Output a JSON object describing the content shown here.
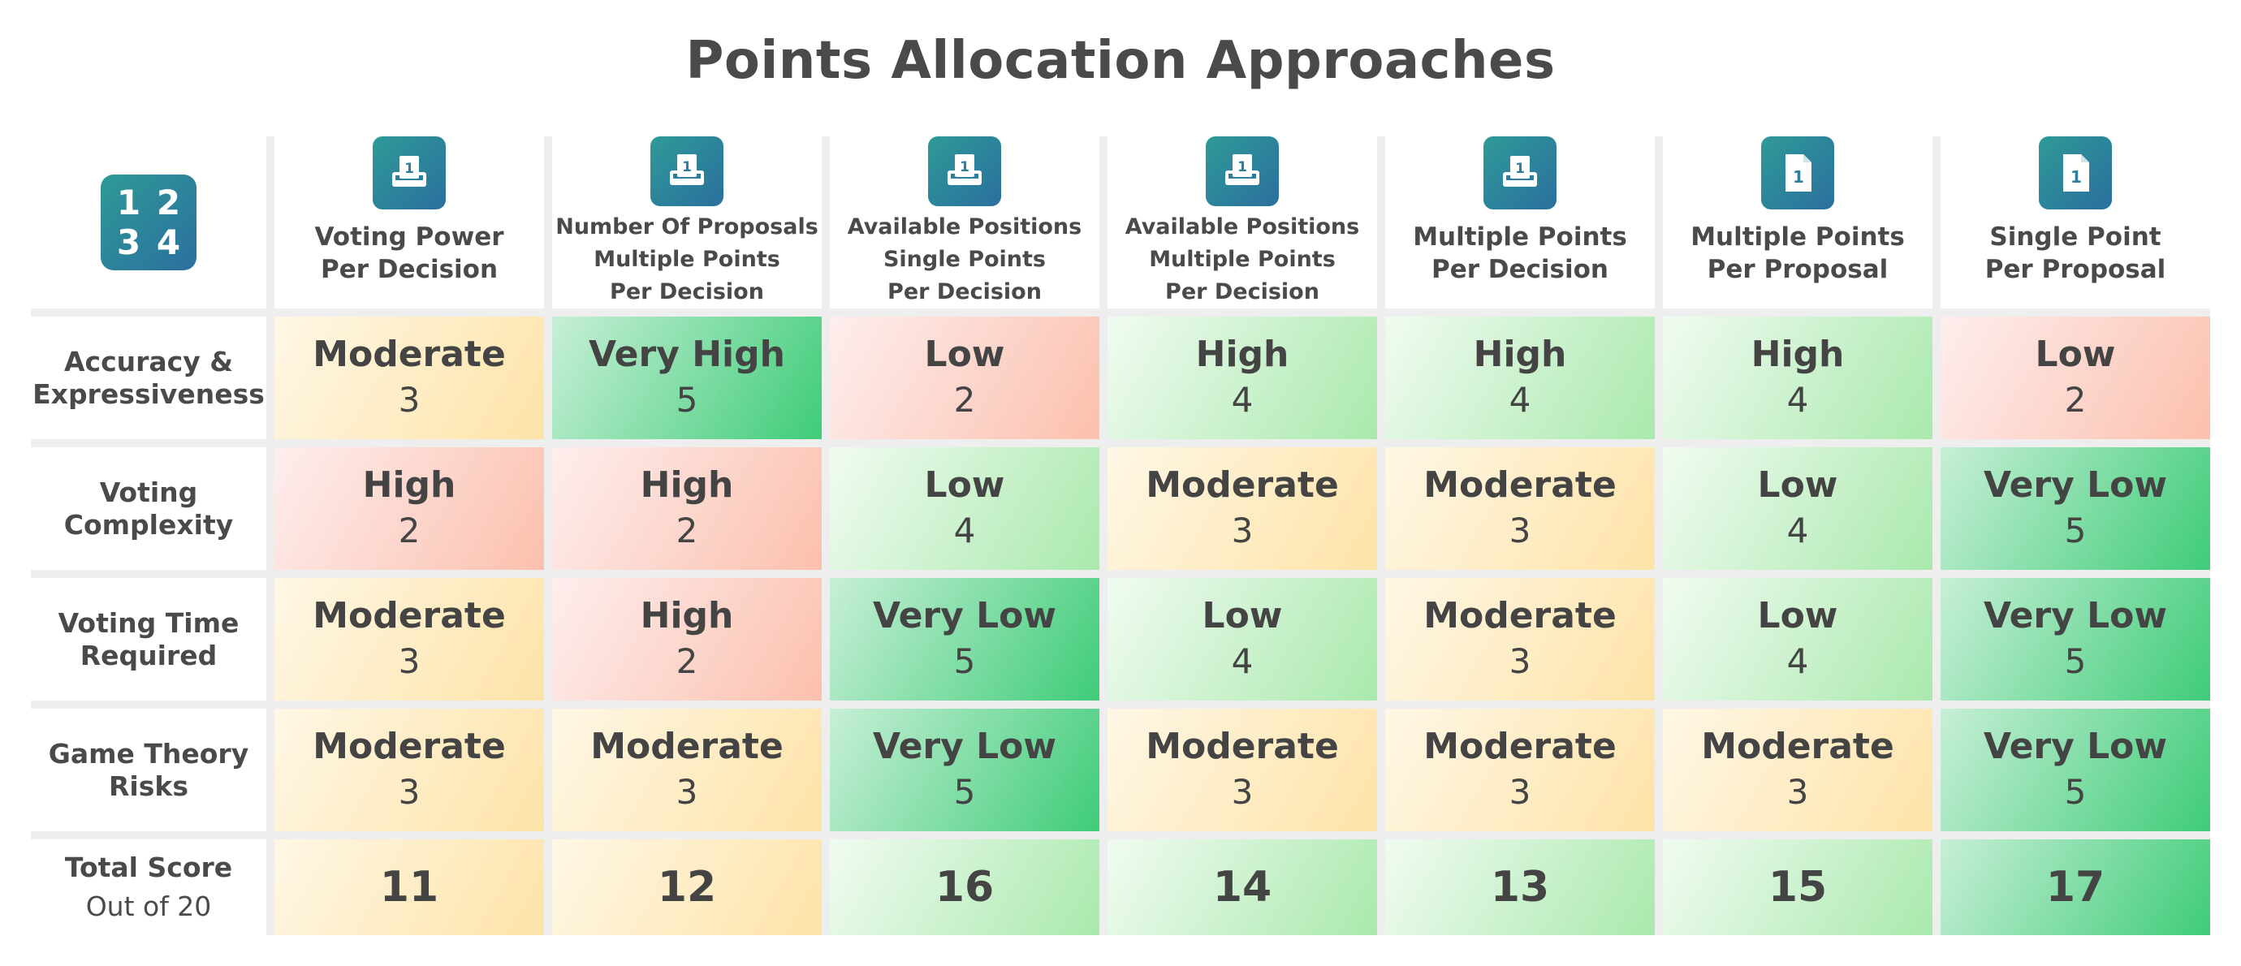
{
  "title": "Points Allocation Approaches",
  "corner_icon": {
    "name": "numbers-grid-icon",
    "digits": [
      "1",
      "2",
      "3",
      "4"
    ]
  },
  "columns": [
    {
      "label": "Voting Power\nPer Decision",
      "icon": "ballot-box-icon",
      "small": false
    },
    {
      "label": "Number Of Proposals\nMultiple Points\nPer Decision",
      "icon": "ballot-box-icon",
      "small": true
    },
    {
      "label": "Available Positions\nSingle Points\nPer Decision",
      "icon": "ballot-box-icon",
      "small": true
    },
    {
      "label": "Available Positions\nMultiple Points\nPer Decision",
      "icon": "ballot-box-icon",
      "small": true
    },
    {
      "label": "Multiple Points\nPer Decision",
      "icon": "ballot-box-icon",
      "small": false
    },
    {
      "label": "Multiple Points\nPer Proposal",
      "icon": "document-icon",
      "small": false
    },
    {
      "label": "Single Point\nPer Proposal",
      "icon": "document-icon",
      "small": false
    }
  ],
  "rows": [
    {
      "label": "Accuracy &\nExpressiveness",
      "cells": [
        {
          "rating": "Moderate",
          "score": "3",
          "tone": "moderate"
        },
        {
          "rating": "Very High",
          "score": "5",
          "tone": "best"
        },
        {
          "rating": "Low",
          "score": "2",
          "tone": "bad"
        },
        {
          "rating": "High",
          "score": "4",
          "tone": "good"
        },
        {
          "rating": "High",
          "score": "4",
          "tone": "good"
        },
        {
          "rating": "High",
          "score": "4",
          "tone": "good"
        },
        {
          "rating": "Low",
          "score": "2",
          "tone": "bad"
        }
      ]
    },
    {
      "label": "Voting\nComplexity",
      "cells": [
        {
          "rating": "High",
          "score": "2",
          "tone": "bad"
        },
        {
          "rating": "High",
          "score": "2",
          "tone": "bad"
        },
        {
          "rating": "Low",
          "score": "4",
          "tone": "good"
        },
        {
          "rating": "Moderate",
          "score": "3",
          "tone": "moderate"
        },
        {
          "rating": "Moderate",
          "score": "3",
          "tone": "moderate"
        },
        {
          "rating": "Low",
          "score": "4",
          "tone": "good"
        },
        {
          "rating": "Very Low",
          "score": "5",
          "tone": "best"
        }
      ]
    },
    {
      "label": "Voting Time\nRequired",
      "cells": [
        {
          "rating": "Moderate",
          "score": "3",
          "tone": "moderate"
        },
        {
          "rating": "High",
          "score": "2",
          "tone": "bad"
        },
        {
          "rating": "Very Low",
          "score": "5",
          "tone": "best"
        },
        {
          "rating": "Low",
          "score": "4",
          "tone": "good"
        },
        {
          "rating": "Moderate",
          "score": "3",
          "tone": "moderate"
        },
        {
          "rating": "Low",
          "score": "4",
          "tone": "good"
        },
        {
          "rating": "Very Low",
          "score": "5",
          "tone": "best"
        }
      ]
    },
    {
      "label": "Game Theory\nRisks",
      "cells": [
        {
          "rating": "Moderate",
          "score": "3",
          "tone": "moderate"
        },
        {
          "rating": "Moderate",
          "score": "3",
          "tone": "moderate"
        },
        {
          "rating": "Very Low",
          "score": "5",
          "tone": "best"
        },
        {
          "rating": "Moderate",
          "score": "3",
          "tone": "moderate"
        },
        {
          "rating": "Moderate",
          "score": "3",
          "tone": "moderate"
        },
        {
          "rating": "Moderate",
          "score": "3",
          "tone": "moderate"
        },
        {
          "rating": "Very Low",
          "score": "5",
          "tone": "best"
        }
      ]
    }
  ],
  "total_row": {
    "label": "Total Score",
    "sublabel": "Out of 20",
    "cells": [
      {
        "value": "11",
        "tone": "moderate"
      },
      {
        "value": "12",
        "tone": "moderate"
      },
      {
        "value": "16",
        "tone": "good"
      },
      {
        "value": "14",
        "tone": "good"
      },
      {
        "value": "13",
        "tone": "good"
      },
      {
        "value": "15",
        "tone": "good"
      },
      {
        "value": "17",
        "tone": "best"
      }
    ]
  },
  "colors": {
    "icon_gradient_start": "#2e9a97",
    "icon_gradient_end": "#2b6f9e",
    "moderate": "#fde3a7",
    "bad": "#fcc0ad",
    "good": "#a9e9ad",
    "best": "#3fcc79"
  }
}
